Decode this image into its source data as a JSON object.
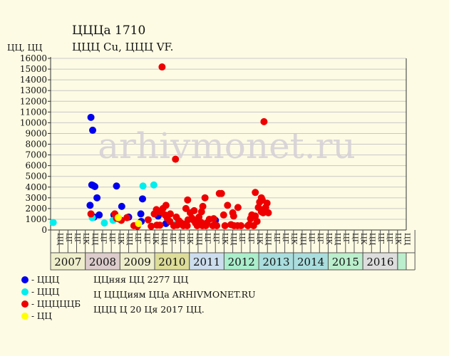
{
  "header": {
    "title": "ЦЦЦа 1710",
    "subtitle": "ЦЦЦ Cu, ЦЦЦ VF.",
    "unit": "ЦЦ, ЦЦ"
  },
  "watermark": "arhivmonet.ru",
  "legend": [
    {
      "label": "- ЦЦЦ",
      "color": "#0000ee"
    },
    {
      "label": "- ЦЦЦ",
      "color": "#00eeee"
    },
    {
      "label": "- ЦЦЦЦЦБ",
      "color": "#ee0000"
    },
    {
      "label": "- ЦЦ",
      "color": "#ffff00"
    }
  ],
  "notes": [
    "ЦЦняя ЦЦ 2277 ЦЦ",
    "Ц ЦЦЦиям ЦЦа ARHIVMONET.RU",
    "ЦЦЦ Ц 20 Ця 2017 ЦЦ."
  ],
  "chart_data": {
    "type": "scatter",
    "ylim": [
      0,
      16000
    ],
    "yticks": [
      0,
      1000,
      2000,
      3000,
      4000,
      5000,
      6000,
      7000,
      8000,
      9000,
      10000,
      11000,
      12000,
      13000,
      14000,
      15000,
      16000
    ],
    "quarter_labels": [
      "ЦЦ",
      "ЦГ",
      "ЦГ",
      "ЦК"
    ],
    "years": [
      {
        "label": "2007",
        "color": "#eeeecc"
      },
      {
        "label": "2008",
        "color": "#ddcccc"
      },
      {
        "label": "2009",
        "color": "#eeeecc"
      },
      {
        "label": "2010",
        "color": "#dddd99"
      },
      {
        "label": "2011",
        "color": "#ccddee"
      },
      {
        "label": "2012",
        "color": "#aaeecc"
      },
      {
        "label": "2013",
        "color": "#aadddd"
      },
      {
        "label": "2014",
        "color": "#aadddd"
      },
      {
        "label": "2015",
        "color": "#bbeecc"
      },
      {
        "label": "2016",
        "color": "#dddddd"
      }
    ],
    "extra_column": {
      "label": "ЦЦ"
    },
    "series": [
      {
        "color": "#0000ee",
        "points": [
          [
            4.65,
            10500
          ],
          [
            4.85,
            9300
          ],
          [
            4.75,
            4200
          ],
          [
            4.9,
            4150
          ],
          [
            5.1,
            4050
          ],
          [
            4.55,
            2300
          ],
          [
            5.35,
            3000
          ],
          [
            5.6,
            1400
          ],
          [
            5.0,
            1200
          ],
          [
            7.6,
            4100
          ],
          [
            8.2,
            2200
          ],
          [
            7.3,
            1400
          ],
          [
            9.0,
            1200
          ],
          [
            7.85,
            1050
          ],
          [
            10.4,
            1500
          ],
          [
            10.6,
            2900
          ],
          [
            10.45,
            800
          ],
          [
            12.4,
            1300
          ],
          [
            13.3,
            600
          ],
          [
            17.2,
            700
          ],
          [
            19.0,
            900
          ]
        ]
      },
      {
        "color": "#00eeee",
        "points": [
          [
            0.3,
            700
          ],
          [
            4.8,
            1150
          ],
          [
            6.2,
            650
          ],
          [
            7.2,
            900
          ],
          [
            10.65,
            4100
          ],
          [
            11.9,
            4200
          ],
          [
            14.5,
            600
          ],
          [
            15.2,
            500
          ]
        ]
      },
      {
        "color": "#ee0000",
        "points": [
          [
            4.65,
            1500
          ],
          [
            7.4,
            1500
          ],
          [
            7.6,
            1100
          ],
          [
            8.15,
            900
          ],
          [
            8.8,
            1150
          ],
          [
            9.6,
            400
          ],
          [
            10.0,
            350
          ],
          [
            11.25,
            950
          ],
          [
            11.6,
            350
          ],
          [
            11.95,
            1500
          ],
          [
            12.2,
            1900
          ],
          [
            12.6,
            1700
          ],
          [
            12.25,
            450
          ],
          [
            12.6,
            450
          ],
          [
            12.85,
            15200
          ],
          [
            12.95,
            2000
          ],
          [
            13.2,
            1400
          ],
          [
            13.3,
            2300
          ],
          [
            13.45,
            1100
          ],
          [
            13.8,
            1500
          ],
          [
            13.75,
            800
          ],
          [
            14.4,
            6600
          ],
          [
            14.2,
            400
          ],
          [
            14.5,
            1200
          ],
          [
            14.6,
            450
          ],
          [
            14.8,
            850
          ],
          [
            15.05,
            650
          ],
          [
            15.3,
            400
          ],
          [
            15.4,
            550
          ],
          [
            15.6,
            2000
          ],
          [
            15.8,
            2800
          ],
          [
            15.75,
            400
          ],
          [
            15.85,
            950
          ],
          [
            16.1,
            1600
          ],
          [
            16.3,
            1100
          ],
          [
            16.55,
            1800
          ],
          [
            16.5,
            900
          ],
          [
            16.7,
            650
          ],
          [
            16.9,
            400
          ],
          [
            17.1,
            1200
          ],
          [
            17.35,
            700
          ],
          [
            17.4,
            1700
          ],
          [
            17.5,
            400
          ],
          [
            17.55,
            2200
          ],
          [
            17.8,
            3000
          ],
          [
            17.9,
            400
          ],
          [
            18.0,
            650
          ],
          [
            18.3,
            1000
          ],
          [
            18.7,
            400
          ],
          [
            18.8,
            1050
          ],
          [
            19.05,
            450
          ],
          [
            19.15,
            400
          ],
          [
            19.45,
            3400
          ],
          [
            19.7,
            3400
          ],
          [
            19.95,
            1400
          ],
          [
            20.1,
            400
          ],
          [
            20.4,
            2300
          ],
          [
            20.8,
            500
          ],
          [
            21.0,
            1600
          ],
          [
            21.1,
            1300
          ],
          [
            21.15,
            400
          ],
          [
            21.6,
            2100
          ],
          [
            21.55,
            400
          ],
          [
            21.95,
            400
          ],
          [
            22.75,
            400
          ],
          [
            23.05,
            1050
          ],
          [
            23.2,
            1400
          ],
          [
            23.4,
            400
          ],
          [
            23.6,
            3500
          ],
          [
            23.6,
            1300
          ],
          [
            23.8,
            800
          ],
          [
            23.95,
            2100
          ],
          [
            24.1,
            2600
          ],
          [
            24.3,
            3000
          ],
          [
            24.4,
            2800
          ],
          [
            24.3,
            1700
          ],
          [
            24.5,
            1900
          ],
          [
            24.5,
            1600
          ],
          [
            24.6,
            10100
          ],
          [
            24.8,
            2100
          ],
          [
            24.95,
            2500
          ],
          [
            25.1,
            1600
          ],
          [
            22.9,
            500
          ]
        ]
      },
      {
        "color": "#ffff00",
        "points": [
          [
            7.8,
            1150
          ],
          [
            10.15,
            600
          ]
        ]
      }
    ]
  }
}
